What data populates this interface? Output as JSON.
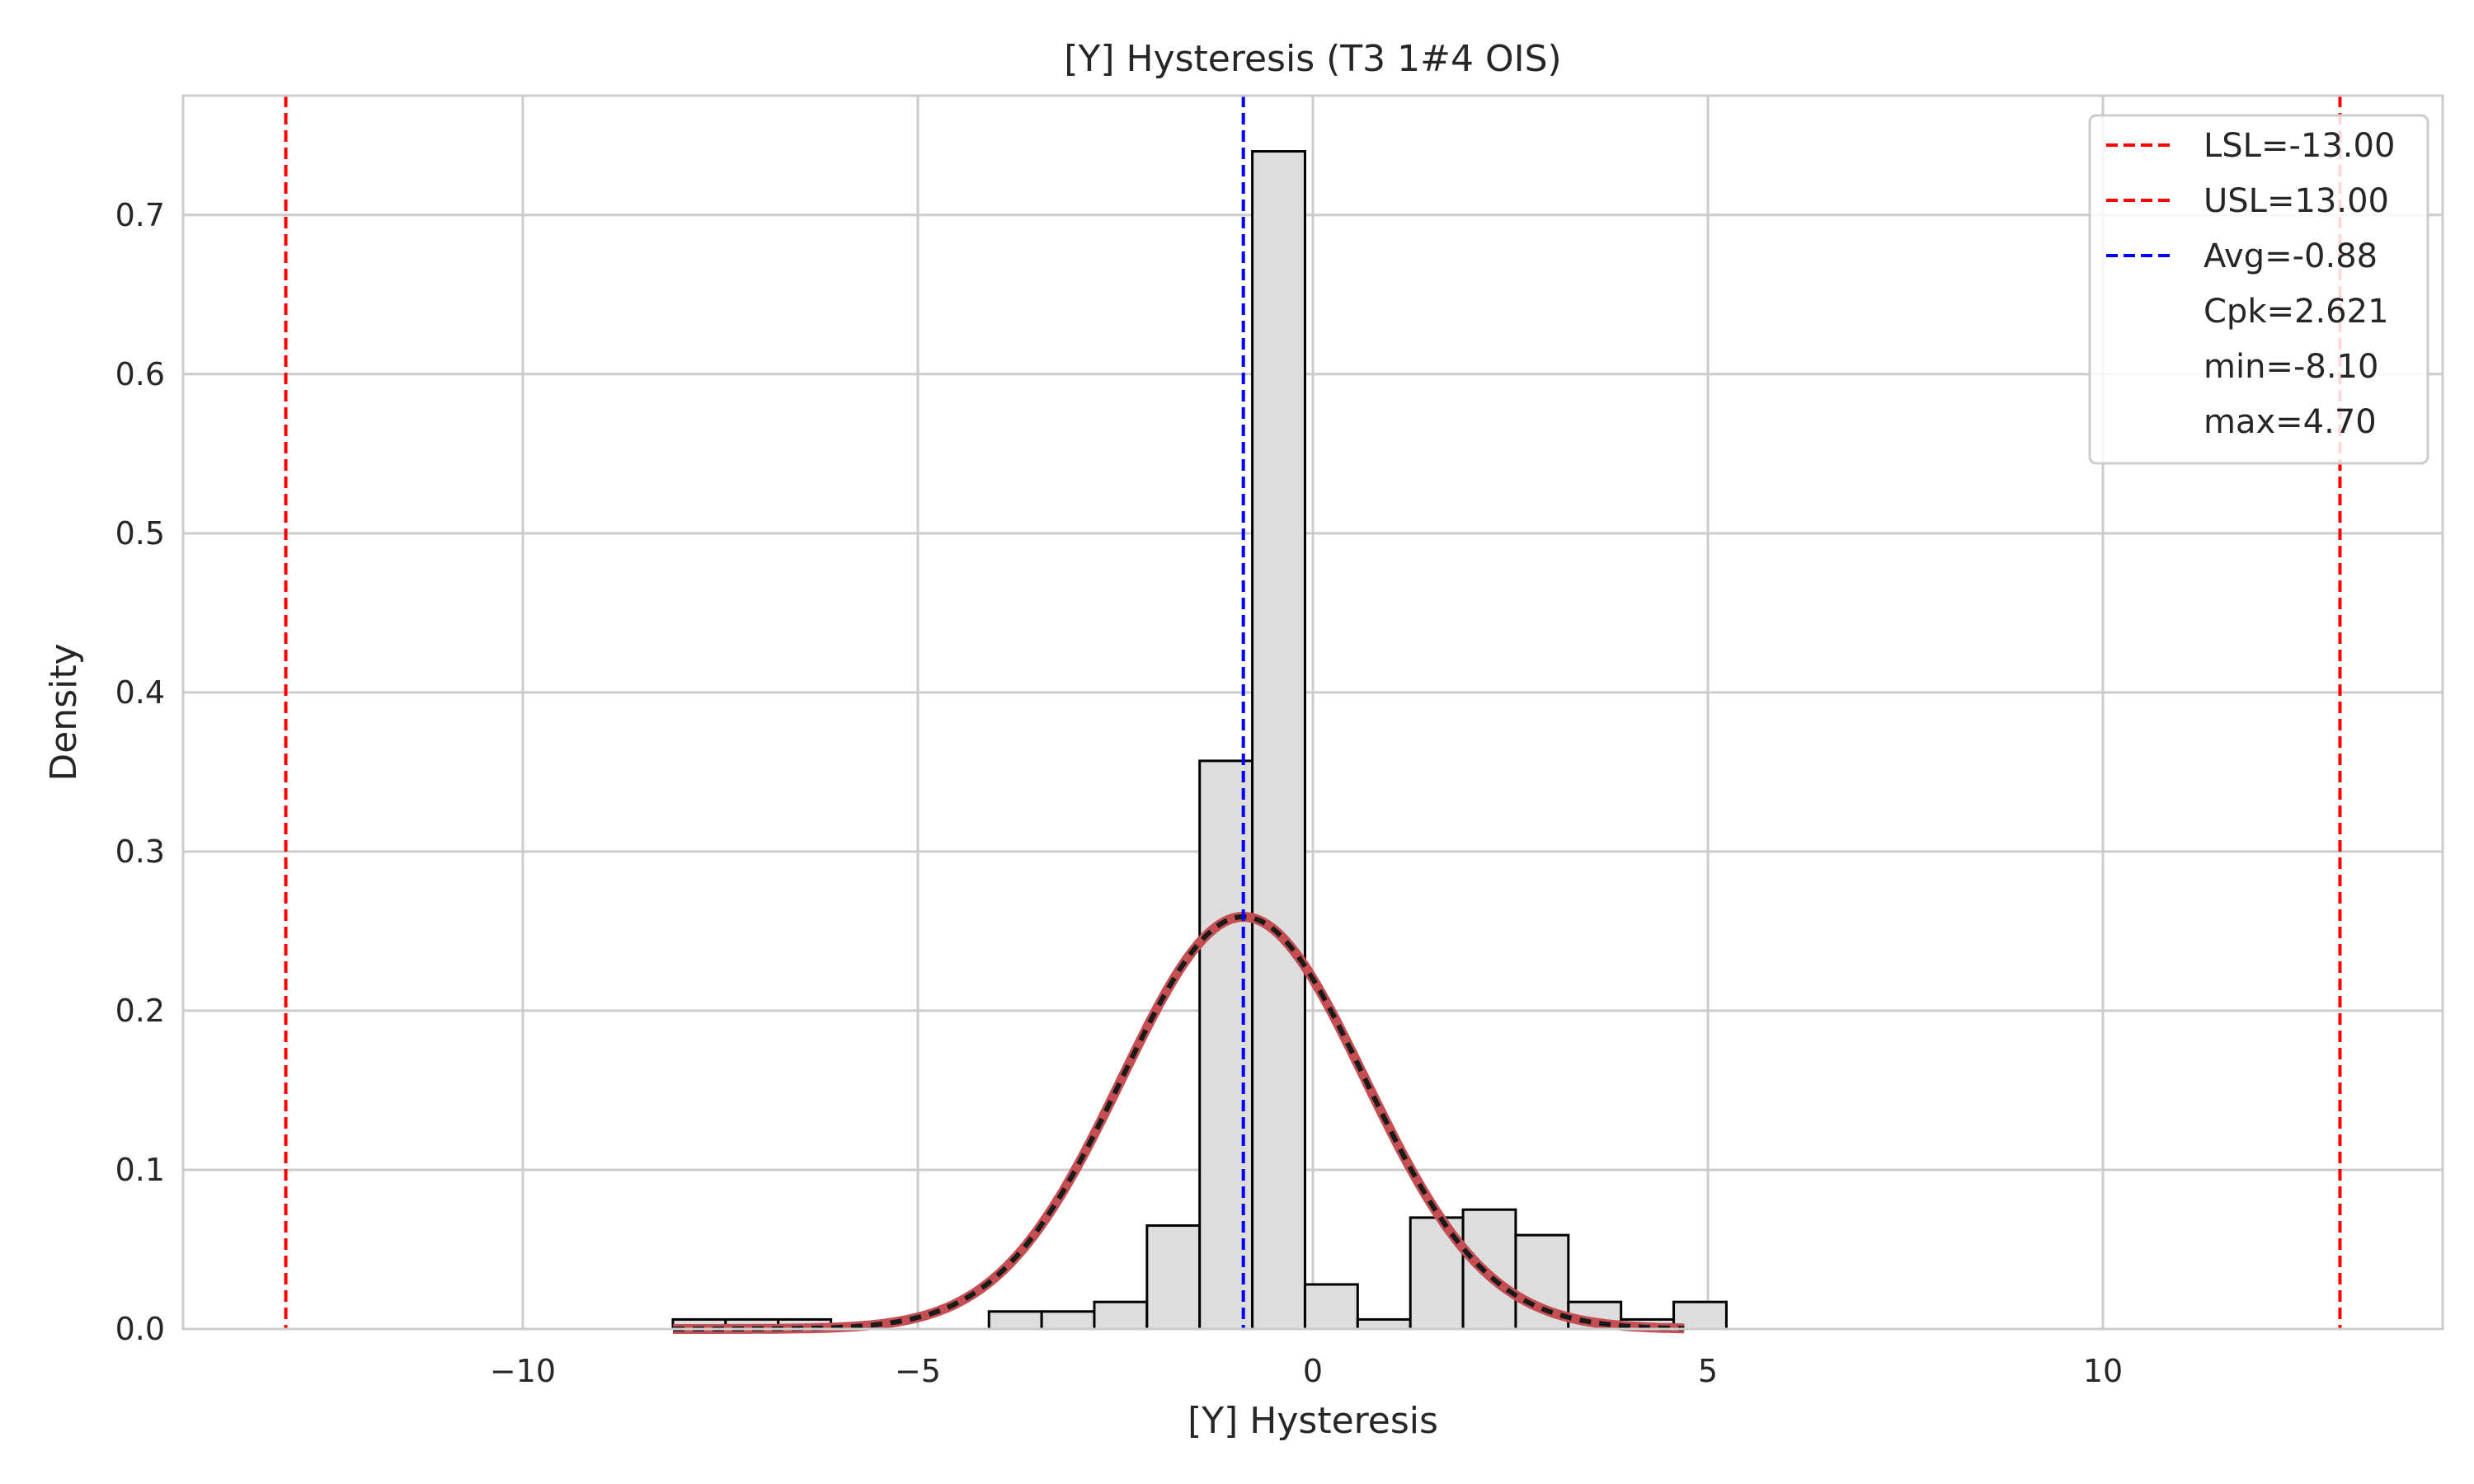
{
  "chart_data": {
    "type": "histogram",
    "title": "[Y] Hysteresis (T3 1#4 OIS)",
    "xlabel": "[Y] Hysteresis",
    "ylabel": "Density",
    "xlim": [
      -14.3,
      14.3
    ],
    "ylim": [
      0,
      0.775
    ],
    "xticks": [
      -10,
      -5,
      0,
      5,
      10
    ],
    "xtick_labels": [
      "−10",
      "−5",
      "0",
      "5",
      "10"
    ],
    "yticks": [
      0.0,
      0.1,
      0.2,
      0.3,
      0.4,
      0.5,
      0.6,
      0.7
    ],
    "ytick_labels": [
      "0.0",
      "0.1",
      "0.2",
      "0.3",
      "0.4",
      "0.5",
      "0.6",
      "0.7"
    ],
    "grid": true,
    "bins": {
      "start": -8.1,
      "width": 0.6667,
      "density": [
        0.006,
        0.006,
        0.006,
        0.0,
        0.0,
        0.0,
        0.011,
        0.011,
        0.017,
        0.065,
        0.357,
        0.74,
        0.028,
        0.006,
        0.07,
        0.075,
        0.059,
        0.017,
        0.006,
        0.017
      ]
    },
    "normal_fit": {
      "mean": -0.88,
      "std": 1.541,
      "peak_density": 0.259,
      "x_range": [
        -8.1,
        4.7
      ]
    },
    "reference_lines": [
      {
        "name": "LSL",
        "x": -13.0,
        "color": "#ff0000"
      },
      {
        "name": "USL",
        "x": 13.0,
        "color": "#ff0000"
      },
      {
        "name": "Avg",
        "x": -0.88,
        "color": "#0000ff"
      }
    ],
    "legend": {
      "position": "upper right",
      "entries": [
        "LSL=-13.00",
        "USL=13.00",
        "Avg=-0.88",
        "Cpk=2.621",
        "min=-8.10",
        "max=4.70"
      ]
    },
    "colors": {
      "bar_fill": "#dddddd",
      "bar_edge": "#000000",
      "curve_under": "#c44e52",
      "curve_over": "#1a1a1a",
      "grid": "#cccccc",
      "spine": "#cccccc"
    }
  }
}
